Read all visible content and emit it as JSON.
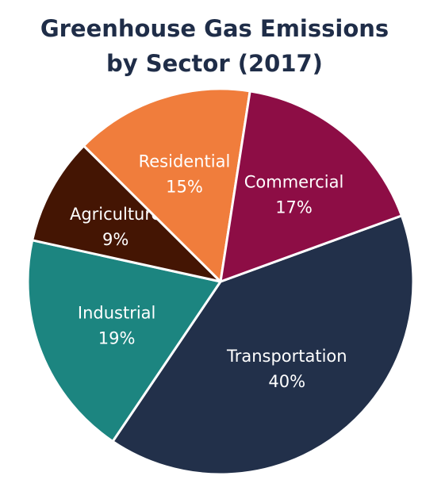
{
  "chart_data": {
    "type": "pie",
    "title_line1": "Greenhouse Gas Emissions",
    "title_line2": "by Sector (2017)",
    "slices": [
      {
        "label": "Transportation",
        "percent_label": "40%",
        "value": 40,
        "color": "#22304a"
      },
      {
        "label": "Industrial",
        "percent_label": "19%",
        "value": 19,
        "color": "#1c8580"
      },
      {
        "label": "Agriculture",
        "percent_label": "9%",
        "value": 9,
        "color": "#441503"
      },
      {
        "label": "Residential",
        "percent_label": "15%",
        "value": 15,
        "color": "#f07d3c"
      },
      {
        "label": "Commercial",
        "percent_label": "17%",
        "value": 17,
        "color": "#8d0d45"
      }
    ]
  }
}
